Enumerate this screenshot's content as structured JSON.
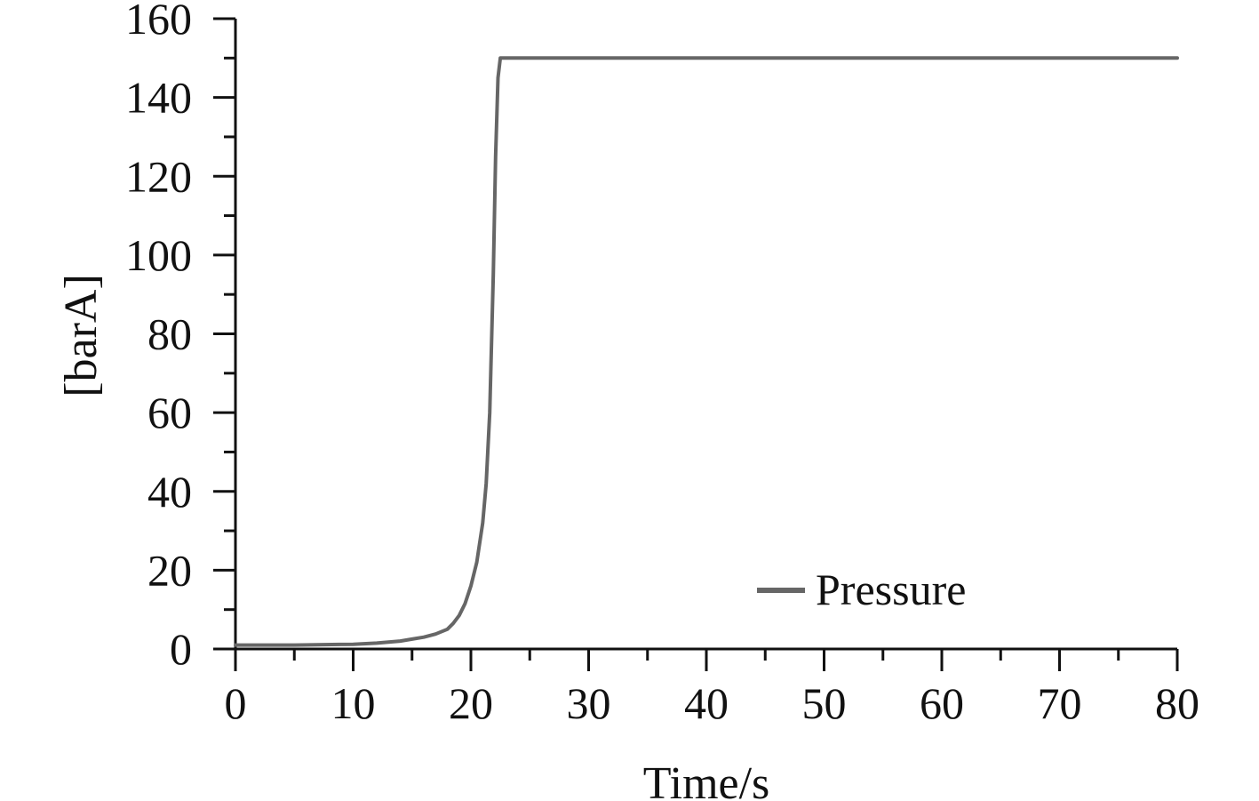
{
  "chart_data": {
    "type": "line",
    "title": "",
    "xlabel": "Time/s",
    "ylabel": "[barA]",
    "xlim": [
      0,
      80
    ],
    "ylim": [
      0,
      160
    ],
    "x_ticks": [
      0,
      10,
      20,
      30,
      40,
      50,
      60,
      70,
      80
    ],
    "y_ticks": [
      0,
      20,
      40,
      60,
      80,
      100,
      120,
      140,
      160
    ],
    "x_tick_labels": [
      "0",
      "10",
      "20",
      "30",
      "40",
      "50",
      "60",
      "70",
      "80"
    ],
    "y_tick_labels": [
      "0",
      "20",
      "40",
      "60",
      "80",
      "100",
      "120",
      "140",
      "160"
    ],
    "grid": false,
    "legend_position": "bottom-right",
    "series": [
      {
        "name": "Pressure",
        "color": "#666666",
        "x": [
          0,
          5,
          10,
          12,
          14,
          15,
          16,
          17,
          18,
          18.5,
          19,
          19.5,
          20,
          20.5,
          21,
          21.3,
          21.6,
          21.9,
          22.1,
          22.3,
          22.5,
          25,
          30,
          40,
          50,
          60,
          70,
          80
        ],
        "y": [
          1,
          1,
          1.2,
          1.5,
          2,
          2.5,
          3,
          3.8,
          5,
          6.5,
          8.5,
          11.5,
          16,
          22,
          32,
          42,
          60,
          95,
          125,
          145,
          150,
          150,
          150,
          150,
          150,
          150,
          150,
          150
        ]
      }
    ]
  }
}
